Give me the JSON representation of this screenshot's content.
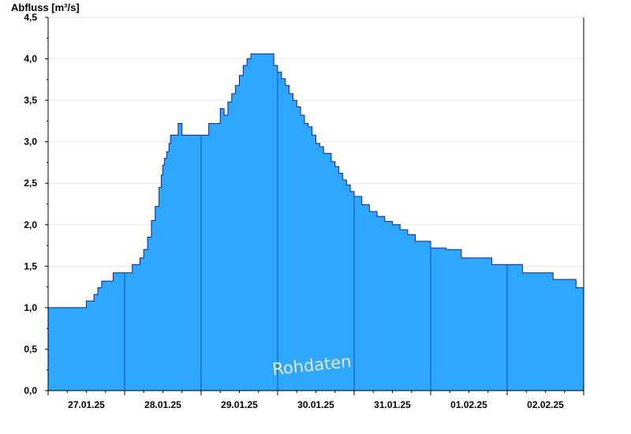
{
  "chart_data": {
    "type": "area",
    "title": "",
    "ylabel": "Abfluss [m³/s]",
    "xlabel": "",
    "ylim": [
      0,
      4.5
    ],
    "y_ticks": [
      0,
      0.5,
      1.0,
      1.5,
      2.0,
      2.5,
      3.0,
      3.5,
      4.0,
      4.5
    ],
    "y_tick_labels": [
      "0,0",
      "0,5",
      "1,0",
      "1,5",
      "2,0",
      "2,5",
      "3,0",
      "3,5",
      "4,0",
      "4,5"
    ],
    "x_range_days": [
      0,
      7
    ],
    "x_tick_labels": [
      "27.01.25",
      "28.01.25",
      "29.01.25",
      "30.01.25",
      "31.01.25",
      "01.02.25",
      "02.02.25"
    ],
    "grid": true,
    "watermark": "Rohdaten",
    "colors": {
      "fill": "#2ea8ff",
      "line": "#0a1f9c",
      "day_line": "#1a4fa0",
      "grid": "#e6e6e6"
    },
    "series": [
      {
        "x": [
          0.0,
          0.25,
          0.5,
          0.55,
          0.6,
          0.65,
          0.7,
          0.75,
          0.8,
          0.85,
          0.9,
          0.95,
          1.0,
          1.1,
          1.2,
          1.25,
          1.3,
          1.35,
          1.4,
          1.45,
          1.48,
          1.5,
          1.52,
          1.55,
          1.58,
          1.6,
          1.65,
          1.7,
          1.75,
          1.8,
          1.85,
          1.9,
          2.0,
          2.1,
          2.25,
          2.3,
          2.35,
          2.4,
          2.45,
          2.5,
          2.55,
          2.6,
          2.65,
          2.7,
          2.75,
          2.8,
          2.85,
          2.9,
          2.95,
          3.0,
          3.05,
          3.1,
          3.15,
          3.2,
          3.25,
          3.3,
          3.35,
          3.4,
          3.45,
          3.5,
          3.55,
          3.6,
          3.7,
          3.75,
          3.8,
          3.85,
          3.9,
          3.95,
          4.0,
          4.1,
          4.2,
          4.3,
          4.4,
          4.5,
          4.6,
          4.7,
          4.8,
          4.9,
          5.0,
          5.2,
          5.4,
          5.6,
          5.8,
          6.0,
          6.2,
          6.4,
          6.6,
          6.8,
          6.9,
          7.0
        ],
        "y": [
          1.0,
          1.0,
          1.08,
          1.08,
          1.16,
          1.24,
          1.32,
          1.32,
          1.32,
          1.42,
          1.42,
          1.42,
          1.42,
          1.52,
          1.6,
          1.7,
          1.85,
          2.05,
          2.22,
          2.45,
          2.6,
          2.72,
          2.8,
          2.88,
          2.98,
          3.08,
          3.08,
          3.22,
          3.08,
          3.08,
          3.08,
          3.08,
          3.08,
          3.22,
          3.4,
          3.32,
          3.48,
          3.58,
          3.68,
          3.8,
          3.92,
          4.0,
          4.06,
          4.06,
          4.06,
          4.06,
          4.06,
          4.06,
          3.92,
          3.84,
          3.76,
          3.68,
          3.58,
          3.5,
          3.42,
          3.32,
          3.22,
          3.18,
          3.08,
          2.98,
          2.94,
          2.86,
          2.76,
          2.7,
          2.62,
          2.54,
          2.48,
          2.4,
          2.34,
          2.24,
          2.16,
          2.1,
          2.04,
          2.0,
          1.94,
          1.88,
          1.8,
          1.8,
          1.72,
          1.7,
          1.6,
          1.6,
          1.52,
          1.52,
          1.42,
          1.42,
          1.34,
          1.34,
          1.24,
          1.24
        ]
      }
    ]
  }
}
